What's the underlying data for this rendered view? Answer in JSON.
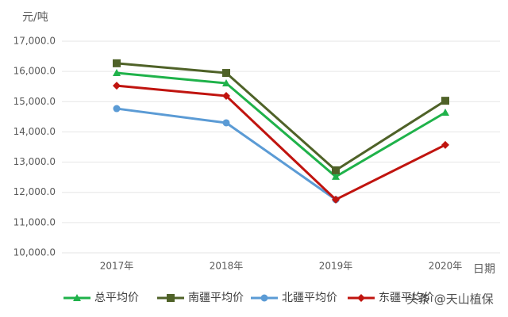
{
  "chart_data": {
    "type": "line",
    "y_label": "元/吨",
    "x_label": "日期",
    "categories": [
      "2017年",
      "2018年",
      "2019年",
      "2020年"
    ],
    "series": [
      {
        "name": "总平均价",
        "color": "#1fb24a",
        "marker": "triangle",
        "values": [
          15950,
          15610,
          12520,
          14640
        ]
      },
      {
        "name": "南疆平均价",
        "color": "#4f6228",
        "marker": "square",
        "values": [
          16270,
          15950,
          12730,
          15030
        ]
      },
      {
        "name": "北疆平均价",
        "color": "#5b9bd5",
        "marker": "circle",
        "values": [
          14770,
          14300,
          11760,
          null
        ]
      },
      {
        "name": "东疆平均价",
        "color": "#c0140f",
        "marker": "diamond",
        "values": [
          15530,
          15190,
          11760,
          13570
        ]
      }
    ],
    "ylim": [
      10000,
      17000
    ],
    "yticks": [
      {
        "value": 10000,
        "label": "10,000.0"
      },
      {
        "value": 11000,
        "label": "11,000.0"
      },
      {
        "value": 12000,
        "label": "12,000.0"
      },
      {
        "value": 13000,
        "label": "13,000.0"
      },
      {
        "value": 14000,
        "label": "14,000.0"
      },
      {
        "value": 15000,
        "label": "15,000.0"
      },
      {
        "value": 16000,
        "label": "16,000.0"
      },
      {
        "value": 17000,
        "label": "17,000.0"
      }
    ],
    "grid": true,
    "legend": "bottom",
    "watermark": "头条 @天山植保"
  }
}
